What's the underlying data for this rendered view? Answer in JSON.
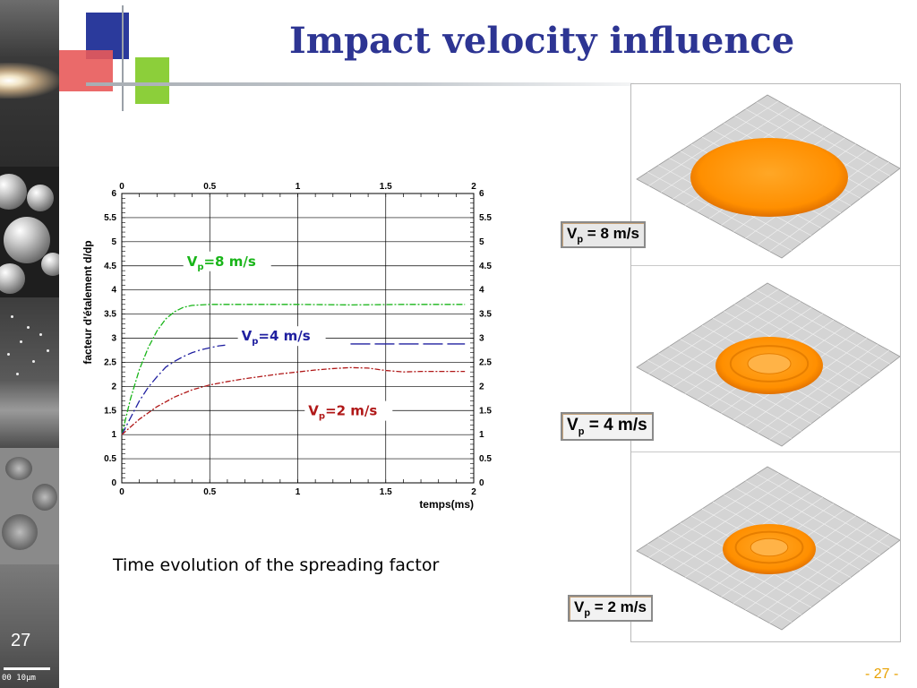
{
  "slide": {
    "title": "Impact velocity influence",
    "caption": "Time evolution of the spreading factor",
    "slide_number": "27",
    "scale_label": "00  10µm",
    "page_number": "- 27 -"
  },
  "colors": {
    "title": "#2d3593",
    "series_8": "#19b519",
    "series_4": "#2020a0",
    "series_2": "#b01818",
    "page_number": "#e8a100",
    "droplet": "#ff8c00"
  },
  "chart_data": {
    "type": "line",
    "xlabel": "temps(ms)",
    "ylabel": "facteur d'étalement d/dp",
    "xlim": [
      0,
      2
    ],
    "ylim": [
      0,
      6
    ],
    "x_ticks": [
      "0",
      "0.5",
      "1",
      "1.5",
      "2"
    ],
    "y_ticks": [
      "0",
      "0.5",
      "1",
      "1.5",
      "2",
      "2.5",
      "3",
      "3.5",
      "4",
      "4.5",
      "5",
      "5.5",
      "6"
    ],
    "grid": true,
    "series": [
      {
        "name": "Vp=8 m/s",
        "label_main": "V",
        "label_sub": "p",
        "label_rest": "=8 m/s",
        "color": "#19b519",
        "x": [
          0,
          0.05,
          0.1,
          0.15,
          0.2,
          0.25,
          0.3,
          0.35,
          0.4,
          0.45,
          0.5,
          0.7,
          1.0,
          1.3,
          1.6,
          1.95
        ],
        "y": [
          1.0,
          1.75,
          2.35,
          2.8,
          3.15,
          3.4,
          3.55,
          3.64,
          3.68,
          3.69,
          3.7,
          3.7,
          3.7,
          3.69,
          3.7,
          3.7
        ]
      },
      {
        "name": "Vp=4 m/s",
        "label_main": "V",
        "label_sub": "p",
        "label_rest": "=4 m/s",
        "color": "#2020a0",
        "x": [
          0,
          0.05,
          0.1,
          0.15,
          0.2,
          0.25,
          0.3,
          0.35,
          0.4,
          0.45,
          0.5,
          0.55,
          0.6,
          1.3,
          1.95
        ],
        "y": [
          1.0,
          1.35,
          1.7,
          1.98,
          2.2,
          2.4,
          2.52,
          2.62,
          2.7,
          2.76,
          2.8,
          2.84,
          2.86,
          2.88,
          2.88
        ]
      },
      {
        "name": "Vp=2 m/s",
        "label_main": "V",
        "label_sub": "p",
        "label_rest": "=2 m/s",
        "color": "#b01818",
        "x": [
          0,
          0.1,
          0.2,
          0.3,
          0.4,
          0.5,
          0.6,
          0.7,
          0.8,
          0.9,
          1.0,
          1.1,
          1.2,
          1.3,
          1.4,
          1.5,
          1.6,
          1.7,
          1.8,
          1.95
        ],
        "y": [
          1.0,
          1.32,
          1.58,
          1.78,
          1.93,
          2.03,
          2.1,
          2.16,
          2.21,
          2.26,
          2.3,
          2.34,
          2.37,
          2.39,
          2.38,
          2.33,
          2.3,
          2.31,
          2.31,
          2.31
        ]
      }
    ]
  },
  "simulations": [
    {
      "label_main": "V",
      "label_sub": "p",
      "label_rest": " = 8 m/s"
    },
    {
      "label_main": "V",
      "label_sub": "p",
      "label_rest": " = 4 m/s"
    },
    {
      "label_main": "V",
      "label_sub": "p",
      "label_rest": " = 2 m/s"
    }
  ]
}
